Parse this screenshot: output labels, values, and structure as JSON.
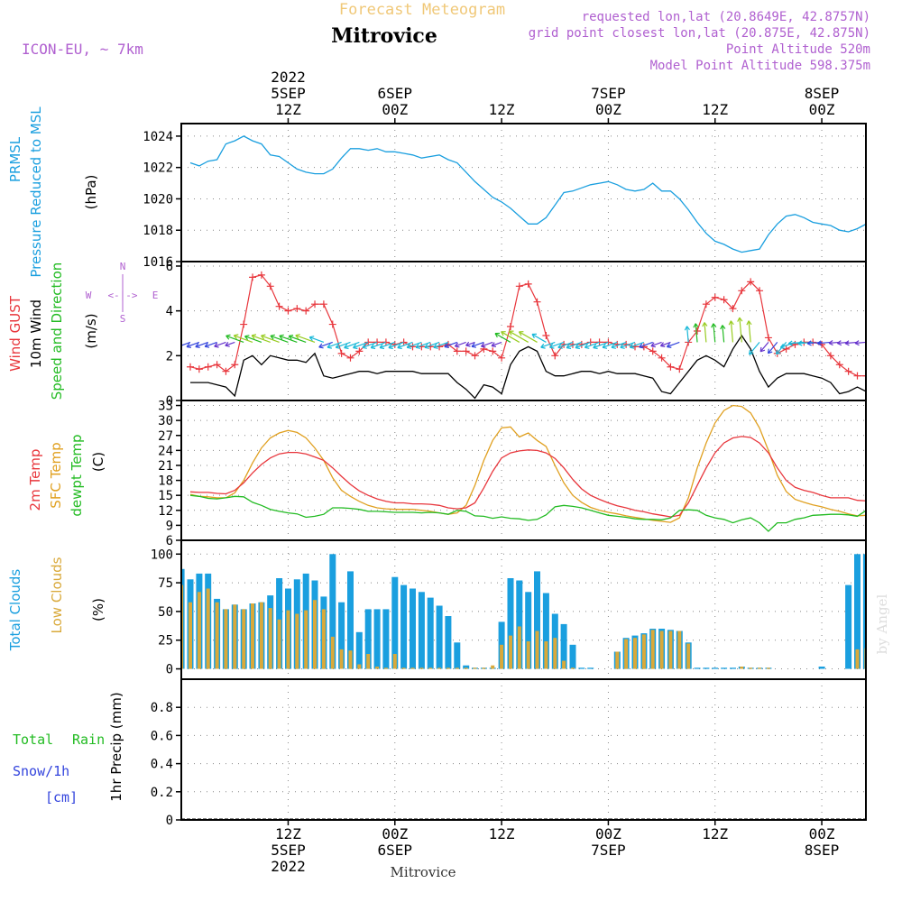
{
  "header": {
    "product": "Forecast Meteogram",
    "location": "Mitrovice",
    "model": "ICON-EU, ~ 7km",
    "requested": "requested lon,lat (20.8649E, 42.8757N)",
    "grid_point": "grid point closest lon,lat (20.875E, 42.875N)",
    "point_altitude": "Point Altitude 520m",
    "model_altitude": "Model Point Altitude 598.375m",
    "footer_location": "Mitrovice",
    "watermark": "by Angel"
  },
  "time_axis": {
    "top_labels": [
      {
        "t": 12,
        "lines": [
          "2022",
          "5SEP",
          "12Z"
        ]
      },
      {
        "t": 24,
        "lines": [
          "6SEP",
          "00Z"
        ]
      },
      {
        "t": 36,
        "lines": [
          "12Z"
        ]
      },
      {
        "t": 48,
        "lines": [
          "7SEP",
          "00Z"
        ]
      },
      {
        "t": 60,
        "lines": [
          "12Z"
        ]
      },
      {
        "t": 72,
        "lines": [
          "8SEP",
          "00Z"
        ]
      }
    ],
    "bottom_labels": [
      {
        "t": 12,
        "lines": [
          "12Z",
          "5SEP",
          "2022"
        ]
      },
      {
        "t": 24,
        "lines": [
          "00Z",
          "6SEP"
        ]
      },
      {
        "t": 36,
        "lines": [
          "12Z"
        ]
      },
      {
        "t": 48,
        "lines": [
          "00Z",
          "7SEP"
        ]
      },
      {
        "t": 60,
        "lines": [
          "12Z"
        ]
      },
      {
        "t": 72,
        "lines": [
          "00Z",
          "8SEP"
        ]
      }
    ]
  },
  "colors": {
    "pressure": "#1a9fdf",
    "gust": "#e8363c",
    "wind": "#000000",
    "t2m": "#e8363c",
    "sfc": "#e0a020",
    "dewpt": "#22bb22",
    "total_clouds": "#1a9fdf",
    "low_clouds": "#d9a93a",
    "rain": "#22bb22",
    "snow": "#3344dd",
    "purple": "#b060d0",
    "title_orange": "#f0c878"
  },
  "panels": {
    "pressure": {
      "labels": [
        "PRMSL",
        "Pressure Reduced to MSL",
        "(hPa)"
      ],
      "ticks": [
        "1016",
        "1018",
        "1020",
        "1022",
        "1024"
      ]
    },
    "wind": {
      "labels": [
        "Wind GUST",
        "10m Wind",
        "Speed and Direction",
        "(m/s)"
      ],
      "ticks": [
        "0",
        "2",
        "4",
        "6"
      ],
      "compass": {
        "n": "N",
        "s": "S",
        "w": "W",
        "e": "E",
        "arrows": "<-|->"
      }
    },
    "temp": {
      "labels": [
        "2m Temp",
        "SFC Temp",
        "dewpt Temp",
        "(C)"
      ],
      "ticks": [
        "6",
        "9",
        "12",
        "15",
        "18",
        "21",
        "24",
        "27",
        "30",
        "33"
      ]
    },
    "clouds": {
      "labels": [
        "Total Clouds",
        "Low Clouds",
        "(%)"
      ],
      "ticks": [
        "0",
        "25",
        "50",
        "75",
        "100"
      ]
    },
    "precip": {
      "labels": [
        "Total",
        "Rain",
        "Snow/1h",
        "[cm]",
        "1hr Precip (mm)"
      ],
      "ticks": [
        "0",
        "0.2",
        "0.4",
        "0.6",
        "0.8"
      ]
    }
  },
  "chart_data": [
    {
      "type": "line",
      "title": "PRMSL Pressure Reduced to MSL",
      "ylabel": "(hPa)",
      "ylim": [
        1016,
        1024.8
      ],
      "x_hours": [
        1,
        2,
        3,
        4,
        5,
        6,
        7,
        8,
        9,
        10,
        11,
        12,
        13,
        14,
        15,
        16,
        17,
        18,
        19,
        20,
        21,
        22,
        23,
        24,
        25,
        26,
        27,
        28,
        29,
        30,
        31,
        32,
        33,
        34,
        35,
        36,
        37,
        38,
        39,
        40,
        41,
        42,
        43,
        44,
        45,
        46,
        47,
        48,
        49,
        50,
        51,
        52,
        53,
        54,
        55,
        56,
        57,
        58,
        59,
        60,
        61,
        62,
        63,
        64,
        65,
        66,
        67,
        68,
        69,
        70,
        71,
        72,
        73,
        74,
        75,
        76,
        77
      ],
      "series": [
        {
          "name": "PRMSL",
          "values": [
            1022.3,
            1022.1,
            1022.4,
            1022.5,
            1023.5,
            1023.7,
            1024.0,
            1023.7,
            1023.5,
            1022.8,
            1022.7,
            1022.3,
            1021.9,
            1021.7,
            1021.6,
            1021.6,
            1021.9,
            1022.6,
            1023.2,
            1023.2,
            1023.1,
            1023.2,
            1023.0,
            1023.0,
            1022.9,
            1022.8,
            1022.6,
            1022.7,
            1022.8,
            1022.5,
            1022.3,
            1021.7,
            1021.1,
            1020.6,
            1020.1,
            1019.8,
            1019.4,
            1018.9,
            1018.4,
            1018.4,
            1018.8,
            1019.6,
            1020.4,
            1020.5,
            1020.7,
            1020.9,
            1021.0,
            1021.1,
            1020.9,
            1020.6,
            1020.5,
            1020.6,
            1021.0,
            1020.5,
            1020.5,
            1020.0,
            1019.3,
            1018.5,
            1017.8,
            1017.3,
            1017.1,
            1016.8,
            1016.6,
            1016.7,
            1016.8,
            1017.7,
            1018.4,
            1018.9,
            1019.0,
            1018.8,
            1018.5,
            1018.4,
            1018.3,
            1018.0,
            1017.9,
            1018.1,
            1018.4
          ]
        }
      ]
    },
    {
      "type": "line",
      "title": "Wind GUST / 10m Wind",
      "ylabel": "(m/s)",
      "ylim": [
        0,
        6.2
      ],
      "x_hours": [
        1,
        2,
        3,
        4,
        5,
        6,
        7,
        8,
        9,
        10,
        11,
        12,
        13,
        14,
        15,
        16,
        17,
        18,
        19,
        20,
        21,
        22,
        23,
        24,
        25,
        26,
        27,
        28,
        29,
        30,
        31,
        32,
        33,
        34,
        35,
        36,
        37,
        38,
        39,
        40,
        41,
        42,
        43,
        44,
        45,
        46,
        47,
        48,
        49,
        50,
        51,
        52,
        53,
        54,
        55,
        56,
        57,
        58,
        59,
        60,
        61,
        62,
        63,
        64,
        65,
        66,
        67,
        68,
        69,
        70,
        71,
        72,
        73,
        74,
        75,
        76,
        77
      ],
      "series": [
        {
          "name": "Wind GUST",
          "values": [
            1.5,
            1.4,
            1.5,
            1.6,
            1.3,
            1.6,
            3.4,
            5.5,
            5.6,
            5.1,
            4.2,
            4.0,
            4.1,
            4.0,
            4.3,
            4.3,
            3.4,
            2.1,
            1.9,
            2.2,
            2.6,
            2.6,
            2.6,
            2.5,
            2.6,
            2.4,
            2.4,
            2.4,
            2.4,
            2.5,
            2.2,
            2.2,
            2.0,
            2.3,
            2.2,
            1.9,
            3.3,
            5.1,
            5.2,
            4.4,
            2.9,
            2.0,
            2.5,
            2.5,
            2.5,
            2.6,
            2.6,
            2.6,
            2.5,
            2.5,
            2.4,
            2.4,
            2.2,
            1.9,
            1.5,
            1.4,
            2.6,
            3.1,
            4.3,
            4.6,
            4.5,
            4.1,
            4.9,
            5.3,
            4.9,
            2.8,
            2.1,
            2.3,
            2.5,
            2.6,
            2.6,
            2.5,
            2.0,
            1.6,
            1.3,
            1.1,
            1.1
          ]
        },
        {
          "name": "10m Wind",
          "values": [
            0.8,
            0.8,
            0.8,
            0.7,
            0.6,
            0.2,
            1.8,
            2.0,
            1.6,
            2.0,
            1.9,
            1.8,
            1.8,
            1.7,
            2.1,
            1.1,
            1.0,
            1.1,
            1.2,
            1.3,
            1.3,
            1.2,
            1.3,
            1.3,
            1.3,
            1.3,
            1.2,
            1.2,
            1.2,
            1.2,
            0.8,
            0.5,
            0.1,
            0.7,
            0.6,
            0.3,
            1.6,
            2.2,
            2.4,
            2.2,
            1.3,
            1.1,
            1.1,
            1.2,
            1.3,
            1.3,
            1.2,
            1.3,
            1.2,
            1.2,
            1.2,
            1.1,
            1.0,
            0.4,
            0.3,
            0.8,
            1.3,
            1.8,
            2.0,
            1.8,
            1.5,
            2.3,
            2.9,
            2.3,
            1.3,
            0.6,
            1.0,
            1.2,
            1.2,
            1.2,
            1.1,
            1.0,
            0.8,
            0.3,
            0.4,
            0.6,
            0.4
          ]
        }
      ]
    },
    {
      "type": "line",
      "title": "2m Temp / SFC Temp / dewpt Temp",
      "ylabel": "(C)",
      "ylim": [
        6,
        34
      ],
      "x_hours": [
        1,
        2,
        3,
        4,
        5,
        6,
        7,
        8,
        9,
        10,
        11,
        12,
        13,
        14,
        15,
        16,
        17,
        18,
        19,
        20,
        21,
        22,
        23,
        24,
        25,
        26,
        27,
        28,
        29,
        30,
        31,
        32,
        33,
        34,
        35,
        36,
        37,
        38,
        39,
        40,
        41,
        42,
        43,
        44,
        45,
        46,
        47,
        48,
        49,
        50,
        51,
        52,
        53,
        54,
        55,
        56,
        57,
        58,
        59,
        60,
        61,
        62,
        63,
        64,
        65,
        66,
        67,
        68,
        69,
        70,
        71,
        72,
        73,
        74,
        75,
        76,
        77
      ],
      "series": [
        {
          "name": "2m Temp",
          "values": [
            15.7,
            15.6,
            15.6,
            15.4,
            15.3,
            16.0,
            17.5,
            19.5,
            21.2,
            22.5,
            23.3,
            23.6,
            23.6,
            23.3,
            22.7,
            22.0,
            20.5,
            18.8,
            17.2,
            15.9,
            15.0,
            14.3,
            13.8,
            13.5,
            13.5,
            13.3,
            13.3,
            13.2,
            13.0,
            12.5,
            12.3,
            12.5,
            13.5,
            16.5,
            19.8,
            22.5,
            23.5,
            23.9,
            24.1,
            24.0,
            23.5,
            22.4,
            20.5,
            18.2,
            16.3,
            15.0,
            14.2,
            13.5,
            12.9,
            12.5,
            12.0,
            11.7,
            11.3,
            11.0,
            10.7,
            11.0,
            13.5,
            17.0,
            20.5,
            23.5,
            25.5,
            26.5,
            26.8,
            26.6,
            25.5,
            23.5,
            20.5,
            18.0,
            16.6,
            16.0,
            15.6,
            15.0,
            14.5,
            14.5,
            14.5,
            14.0,
            13.9
          ]
        },
        {
          "name": "SFC Temp",
          "values": [
            15.2,
            14.8,
            14.7,
            14.5,
            14.5,
            15.5,
            18.0,
            21.5,
            24.5,
            26.5,
            27.5,
            28.0,
            27.6,
            26.5,
            24.5,
            22.0,
            18.5,
            16.0,
            14.8,
            13.8,
            13.0,
            12.5,
            12.3,
            12.2,
            12.2,
            12.2,
            12.0,
            11.8,
            11.5,
            11.2,
            11.5,
            13.0,
            17.0,
            22.0,
            26.0,
            28.5,
            28.7,
            26.7,
            27.5,
            26.0,
            24.8,
            21.0,
            17.5,
            15.0,
            13.6,
            12.6,
            12.0,
            11.6,
            11.3,
            10.9,
            10.6,
            10.3,
            10.0,
            9.8,
            9.6,
            10.5,
            14.5,
            20.5,
            25.5,
            29.5,
            32.0,
            33.0,
            32.8,
            31.5,
            28.5,
            24.0,
            19.0,
            15.8,
            14.2,
            13.6,
            13.1,
            12.7,
            12.2,
            11.8,
            11.3,
            10.9,
            11.0
          ]
        },
        {
          "name": "dewpt Temp",
          "values": [
            15.0,
            14.8,
            14.4,
            14.3,
            14.5,
            14.8,
            14.7,
            13.6,
            13.0,
            12.2,
            11.8,
            11.5,
            11.3,
            10.6,
            10.8,
            11.2,
            12.5,
            12.5,
            12.4,
            12.2,
            11.8,
            11.8,
            11.7,
            11.6,
            11.6,
            11.6,
            11.5,
            11.6,
            11.5,
            11.2,
            12.0,
            11.8,
            10.9,
            10.8,
            10.4,
            10.7,
            10.4,
            10.3,
            10.0,
            10.2,
            11.1,
            12.7,
            13.0,
            12.8,
            12.5,
            12.0,
            11.5,
            11.0,
            10.8,
            10.6,
            10.3,
            10.2,
            10.2,
            10.1,
            10.5,
            12.0,
            12.1,
            12.0,
            11.0,
            10.5,
            10.2,
            9.5,
            10.1,
            10.5,
            9.5,
            7.8,
            9.5,
            9.5,
            10.2,
            10.5,
            11.0,
            11.1,
            11.2,
            11.2,
            11.1,
            10.8,
            12.0
          ]
        }
      ]
    },
    {
      "type": "bar",
      "title": "Total Clouds / Low Clouds",
      "ylabel": "(%)",
      "ylim": [
        0,
        100
      ],
      "x_hours": [
        0,
        1,
        2,
        3,
        4,
        5,
        6,
        7,
        8,
        9,
        10,
        11,
        12,
        13,
        14,
        15,
        16,
        17,
        18,
        19,
        20,
        21,
        22,
        23,
        24,
        25,
        26,
        27,
        28,
        29,
        30,
        31,
        32,
        33,
        34,
        35,
        36,
        37,
        38,
        39,
        40,
        41,
        42,
        43,
        44,
        45,
        46,
        47,
        48,
        49,
        50,
        51,
        52,
        53,
        54,
        55,
        56,
        57,
        58,
        59,
        60,
        61,
        62,
        63,
        64,
        65,
        66,
        67,
        68,
        69,
        70,
        71,
        72,
        73,
        74,
        75,
        76,
        77
      ],
      "series": [
        {
          "name": "Total Clouds",
          "values": [
            87,
            78,
            83,
            83,
            61,
            52,
            56,
            52,
            57,
            58,
            64,
            79,
            70,
            78,
            83,
            77,
            63,
            100,
            58,
            85,
            32,
            52,
            52,
            52,
            80,
            73,
            70,
            67,
            62,
            55,
            46,
            23,
            3,
            1,
            1,
            1,
            41,
            79,
            77,
            67,
            85,
            66,
            48,
            39,
            21,
            1,
            1,
            0,
            0,
            15,
            27,
            29,
            31,
            35,
            35,
            34,
            33,
            23,
            1,
            1,
            1,
            1,
            1,
            2,
            1,
            1,
            1,
            0,
            0,
            0,
            0,
            0,
            2,
            0,
            0,
            73,
            100,
            100
          ]
        },
        {
          "name": "Low Clouds",
          "values": [
            73,
            58,
            67,
            70,
            58,
            52,
            56,
            52,
            57,
            58,
            53,
            43,
            51,
            48,
            51,
            60,
            52,
            28,
            17,
            16,
            4,
            13,
            2,
            1,
            13,
            1,
            1,
            1,
            1,
            1,
            1,
            1,
            1,
            1,
            1,
            3,
            21,
            29,
            37,
            24,
            33,
            24,
            27,
            7,
            1,
            0,
            0,
            0,
            0,
            15,
            26,
            27,
            30,
            34,
            33,
            33,
            33,
            22,
            0,
            0,
            0,
            0,
            0,
            2,
            1,
            1,
            1,
            0,
            0,
            0,
            0,
            0,
            0,
            0,
            0,
            0,
            17,
            18
          ]
        }
      ]
    },
    {
      "type": "bar",
      "title": "Total Rain / Snow",
      "ylabel": "1hr Precip (mm)",
      "ylim": [
        0,
        1
      ],
      "series": [
        {
          "name": "Total Rain",
          "values": []
        },
        {
          "name": "Snow/1h",
          "values": []
        }
      ]
    }
  ]
}
